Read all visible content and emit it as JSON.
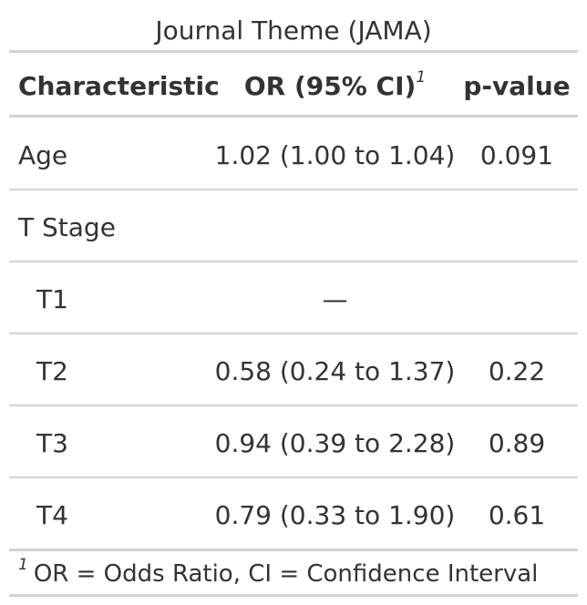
{
  "table": {
    "title": "Journal Theme (JAMA)",
    "headers": {
      "characteristic": "Characteristic",
      "or": "OR (95% CI)",
      "or_footnote_mark": "1",
      "p_value": "p-value"
    },
    "rows": [
      {
        "label": "Age",
        "or": "1.02 (1.00 to 1.04)",
        "p": "0.091"
      },
      {
        "label": "T Stage",
        "or": "",
        "p": ""
      },
      {
        "label": "T1",
        "or": "—",
        "p": ""
      },
      {
        "label": "T2",
        "or": "0.58 (0.24 to 1.37)",
        "p": "0.22"
      },
      {
        "label": "T3",
        "or": "0.94 (0.39 to 2.28)",
        "p": "0.89"
      },
      {
        "label": "T4",
        "or": "0.79 (0.33 to 1.90)",
        "p": "0.61"
      }
    ],
    "footnote": {
      "mark": "1",
      "text": "OR = Odds Ratio, CI = Confidence Interval"
    },
    "colors": {
      "text": "#333333",
      "rule": "#d3d3d3"
    }
  }
}
